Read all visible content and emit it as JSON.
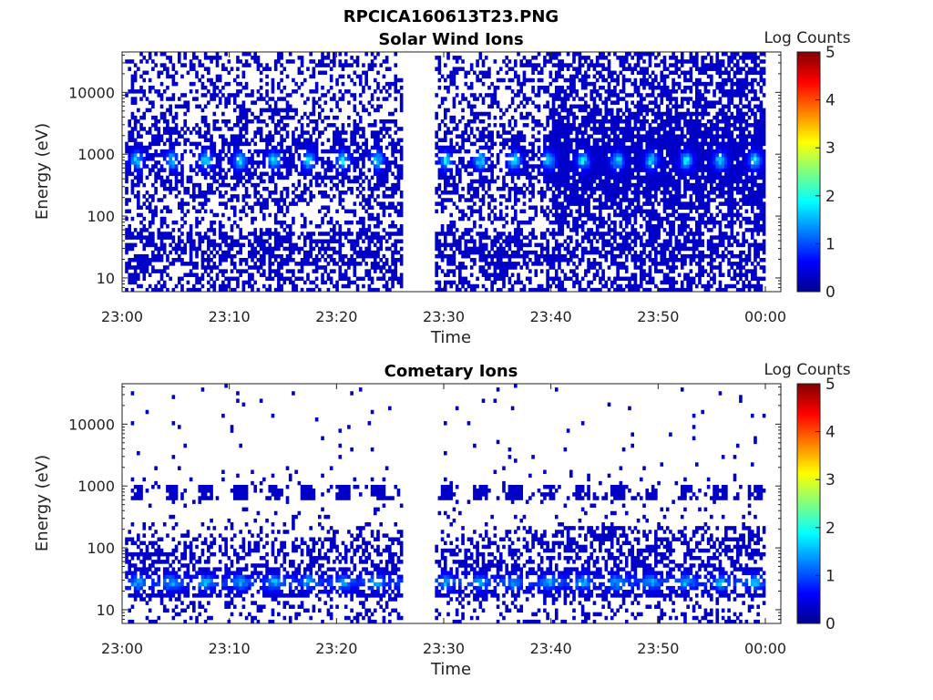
{
  "figure_title": "RPCICA160613T23.PNG",
  "chart_data": [
    {
      "type": "heatmap",
      "title": "Solar Wind Ions",
      "xlabel": "Time",
      "ylabel": "Energy (eV)",
      "x_tick_labels": [
        "23:00",
        "23:10",
        "23:20",
        "23:30",
        "23:40",
        "23:50",
        "00:00"
      ],
      "x_range_minutes": [
        0,
        60
      ],
      "y_scale": "log",
      "y_tick_values": [
        10,
        100,
        1000,
        10000
      ],
      "y_tick_labels": [
        "10",
        "100",
        "1000",
        "10000"
      ],
      "y_range": [
        6,
        45000
      ],
      "data_gap_minutes": [
        26.2,
        29.3
      ],
      "colorbar": {
        "label": "Log Counts",
        "range": [
          0,
          5
        ],
        "tick_labels": [
          "0",
          "1",
          "2",
          "3",
          "4",
          "5"
        ],
        "colormap": "jet"
      },
      "peak_energy_ev": 800,
      "peak_log_counts": 1.6,
      "secondary_band_ev": 30
    },
    {
      "type": "heatmap",
      "title": "Cometary Ions",
      "xlabel": "Time",
      "ylabel": "Energy (eV)",
      "x_tick_labels": [
        "23:00",
        "23:10",
        "23:20",
        "23:30",
        "23:40",
        "23:50",
        "00:00"
      ],
      "x_range_minutes": [
        0,
        60
      ],
      "y_scale": "log",
      "y_tick_values": [
        10,
        100,
        1000,
        10000
      ],
      "y_tick_labels": [
        "10",
        "100",
        "1000",
        "10000"
      ],
      "y_range": [
        6,
        45000
      ],
      "data_gap_minutes": [
        26.2,
        29.3
      ],
      "colorbar": {
        "label": "Log Counts",
        "range": [
          0,
          5
        ],
        "tick_labels": [
          "0",
          "1",
          "2",
          "3",
          "4",
          "5"
        ],
        "colormap": "jet"
      },
      "peak_energy_ev": 28,
      "peak_log_counts": 1.3,
      "secondary_band_ev": 800
    }
  ]
}
